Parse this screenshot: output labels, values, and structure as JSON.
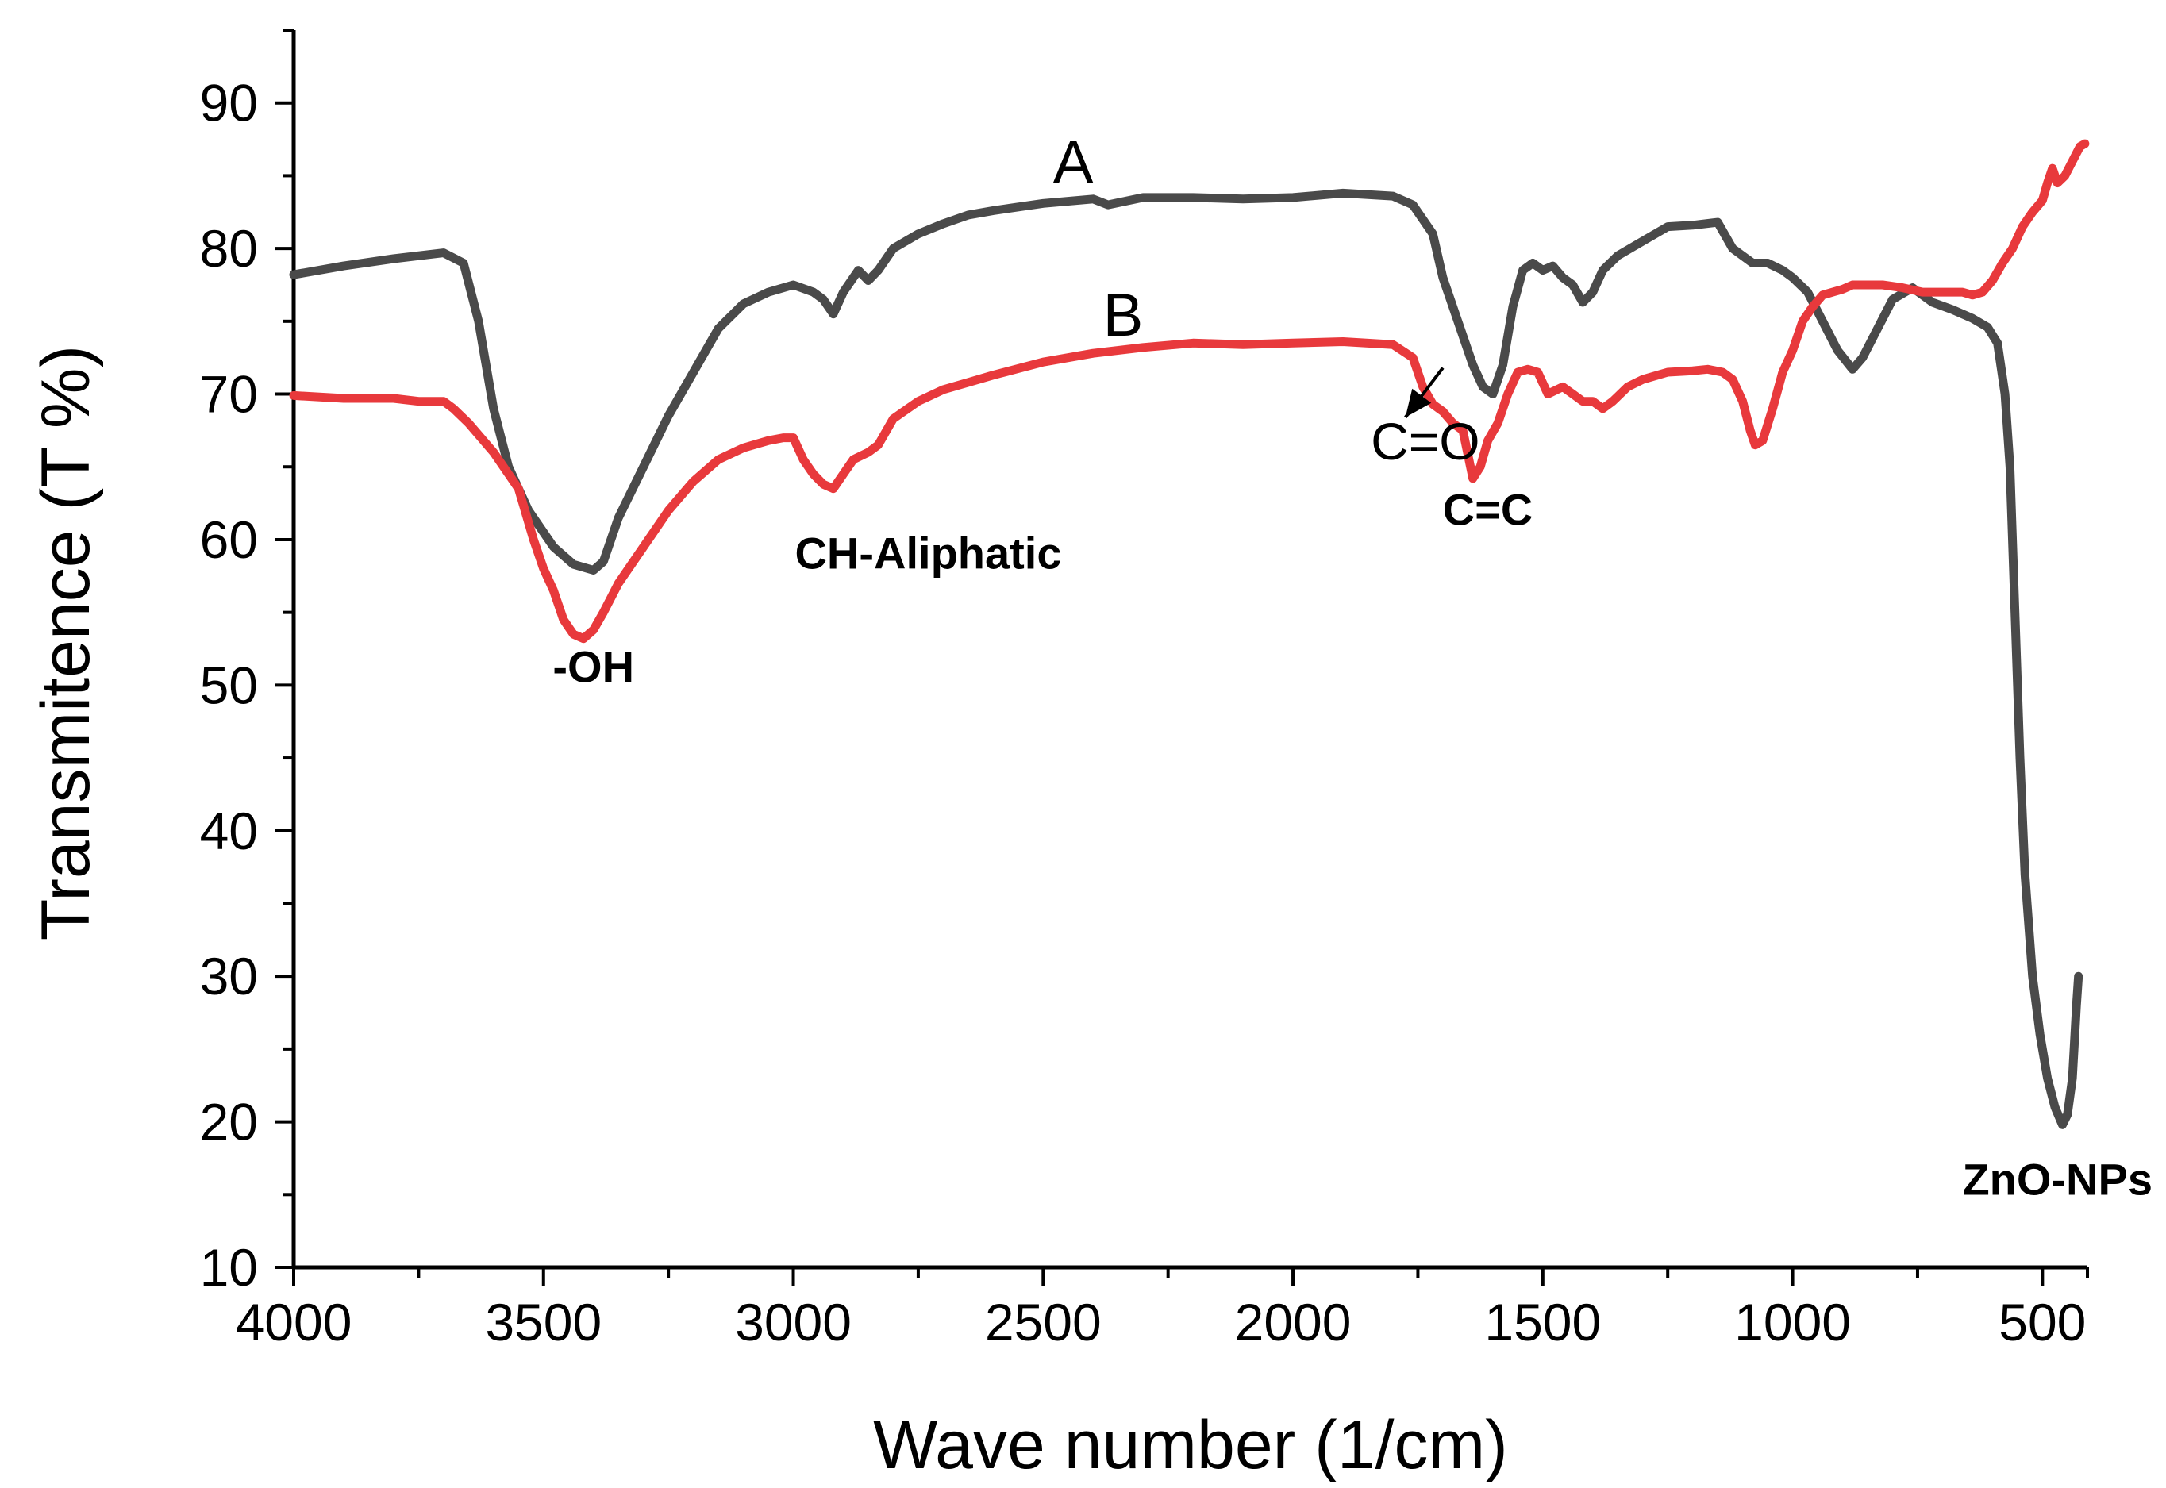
{
  "chart_data": {
    "type": "line",
    "xlabel": "Wave number (1/cm)",
    "ylabel": "Transmitence (T %)",
    "xlim": [
      4000,
      410
    ],
    "ylim": [
      10,
      95
    ],
    "x_ticks": [
      4000,
      3500,
      3000,
      2500,
      2000,
      1500,
      1000,
      500
    ],
    "y_ticks": [
      10,
      20,
      30,
      40,
      50,
      60,
      70,
      80,
      90
    ],
    "grid": false,
    "series": [
      {
        "name": "A",
        "color": "#4a4a4a",
        "points": [
          [
            4000,
            78.2
          ],
          [
            3900,
            78.8
          ],
          [
            3800,
            79.3
          ],
          [
            3700,
            79.7
          ],
          [
            3660,
            79
          ],
          [
            3630,
            75
          ],
          [
            3600,
            69
          ],
          [
            3570,
            65
          ],
          [
            3530,
            62
          ],
          [
            3480,
            59.5
          ],
          [
            3440,
            58.3
          ],
          [
            3400,
            57.9
          ],
          [
            3380,
            58.5
          ],
          [
            3350,
            61.5
          ],
          [
            3300,
            65
          ],
          [
            3250,
            68.5
          ],
          [
            3200,
            71.5
          ],
          [
            3150,
            74.5
          ],
          [
            3100,
            76.2
          ],
          [
            3050,
            77
          ],
          [
            3000,
            77.5
          ],
          [
            2960,
            77
          ],
          [
            2940,
            76.5
          ],
          [
            2920,
            75.5
          ],
          [
            2900,
            77
          ],
          [
            2870,
            78.5
          ],
          [
            2850,
            77.8
          ],
          [
            2830,
            78.5
          ],
          [
            2800,
            80
          ],
          [
            2750,
            81
          ],
          [
            2700,
            81.7
          ],
          [
            2650,
            82.3
          ],
          [
            2600,
            82.6
          ],
          [
            2500,
            83.1
          ],
          [
            2400,
            83.4
          ],
          [
            2370,
            83
          ],
          [
            2300,
            83.5
          ],
          [
            2200,
            83.5
          ],
          [
            2100,
            83.4
          ],
          [
            2000,
            83.5
          ],
          [
            1900,
            83.8
          ],
          [
            1800,
            83.6
          ],
          [
            1760,
            83
          ],
          [
            1720,
            81
          ],
          [
            1700,
            78
          ],
          [
            1680,
            76
          ],
          [
            1660,
            74
          ],
          [
            1640,
            72
          ],
          [
            1620,
            70.5
          ],
          [
            1600,
            70
          ],
          [
            1580,
            72
          ],
          [
            1560,
            76
          ],
          [
            1540,
            78.5
          ],
          [
            1520,
            79
          ],
          [
            1500,
            78.5
          ],
          [
            1480,
            78.8
          ],
          [
            1460,
            78
          ],
          [
            1440,
            77.5
          ],
          [
            1420,
            76.3
          ],
          [
            1400,
            77
          ],
          [
            1380,
            78.5
          ],
          [
            1350,
            79.5
          ],
          [
            1300,
            80.5
          ],
          [
            1250,
            81.5
          ],
          [
            1200,
            81.6
          ],
          [
            1150,
            81.8
          ],
          [
            1120,
            80
          ],
          [
            1100,
            79.5
          ],
          [
            1080,
            79
          ],
          [
            1050,
            79
          ],
          [
            1020,
            78.5
          ],
          [
            1000,
            78
          ],
          [
            970,
            77
          ],
          [
            940,
            75
          ],
          [
            910,
            73
          ],
          [
            880,
            71.7
          ],
          [
            860,
            72.5
          ],
          [
            830,
            74.5
          ],
          [
            800,
            76.5
          ],
          [
            760,
            77.3
          ],
          [
            720,
            76.3
          ],
          [
            680,
            75.8
          ],
          [
            640,
            75.2
          ],
          [
            610,
            74.6
          ],
          [
            590,
            73.5
          ],
          [
            575,
            70
          ],
          [
            565,
            65
          ],
          [
            555,
            55
          ],
          [
            545,
            45
          ],
          [
            535,
            37
          ],
          [
            520,
            30
          ],
          [
            505,
            26
          ],
          [
            490,
            23
          ],
          [
            475,
            21
          ],
          [
            460,
            19.8
          ],
          [
            450,
            20.5
          ],
          [
            440,
            23
          ],
          [
            432,
            28
          ],
          [
            428,
            30
          ]
        ]
      },
      {
        "name": "B",
        "color": "#e8393c",
        "points": [
          [
            4000,
            69.9
          ],
          [
            3900,
            69.7
          ],
          [
            3800,
            69.7
          ],
          [
            3750,
            69.5
          ],
          [
            3700,
            69.5
          ],
          [
            3680,
            69
          ],
          [
            3650,
            68
          ],
          [
            3600,
            66
          ],
          [
            3550,
            63.5
          ],
          [
            3520,
            60
          ],
          [
            3500,
            58
          ],
          [
            3480,
            56.5
          ],
          [
            3460,
            54.5
          ],
          [
            3440,
            53.5
          ],
          [
            3420,
            53.2
          ],
          [
            3400,
            53.8
          ],
          [
            3380,
            55
          ],
          [
            3350,
            57
          ],
          [
            3300,
            59.5
          ],
          [
            3250,
            62
          ],
          [
            3200,
            64
          ],
          [
            3150,
            65.5
          ],
          [
            3100,
            66.3
          ],
          [
            3050,
            66.8
          ],
          [
            3020,
            67
          ],
          [
            3000,
            67
          ],
          [
            2980,
            65.5
          ],
          [
            2960,
            64.5
          ],
          [
            2940,
            63.8
          ],
          [
            2920,
            63.5
          ],
          [
            2900,
            64.5
          ],
          [
            2880,
            65.5
          ],
          [
            2850,
            66
          ],
          [
            2830,
            66.5
          ],
          [
            2800,
            68.3
          ],
          [
            2750,
            69.5
          ],
          [
            2700,
            70.3
          ],
          [
            2650,
            70.8
          ],
          [
            2600,
            71.3
          ],
          [
            2500,
            72.2
          ],
          [
            2400,
            72.8
          ],
          [
            2300,
            73.2
          ],
          [
            2200,
            73.5
          ],
          [
            2100,
            73.4
          ],
          [
            2000,
            73.5
          ],
          [
            1900,
            73.6
          ],
          [
            1800,
            73.4
          ],
          [
            1760,
            72.5
          ],
          [
            1740,
            70.5
          ],
          [
            1720,
            69.3
          ],
          [
            1700,
            68.8
          ],
          [
            1680,
            68
          ],
          [
            1660,
            67.5
          ],
          [
            1640,
            64.2
          ],
          [
            1625,
            65
          ],
          [
            1610,
            66.8
          ],
          [
            1590,
            68
          ],
          [
            1570,
            70
          ],
          [
            1550,
            71.5
          ],
          [
            1530,
            71.7
          ],
          [
            1510,
            71.5
          ],
          [
            1490,
            70
          ],
          [
            1460,
            70.5
          ],
          [
            1440,
            70
          ],
          [
            1420,
            69.5
          ],
          [
            1400,
            69.5
          ],
          [
            1380,
            69
          ],
          [
            1360,
            69.5
          ],
          [
            1330,
            70.5
          ],
          [
            1300,
            71
          ],
          [
            1250,
            71.5
          ],
          [
            1200,
            71.6
          ],
          [
            1170,
            71.7
          ],
          [
            1140,
            71.5
          ],
          [
            1120,
            71
          ],
          [
            1100,
            69.5
          ],
          [
            1085,
            67.5
          ],
          [
            1075,
            66.5
          ],
          [
            1060,
            66.8
          ],
          [
            1040,
            69
          ],
          [
            1020,
            71.5
          ],
          [
            1000,
            73
          ],
          [
            980,
            75
          ],
          [
            960,
            76
          ],
          [
            940,
            76.8
          ],
          [
            920,
            77
          ],
          [
            900,
            77.2
          ],
          [
            880,
            77.5
          ],
          [
            860,
            77.5
          ],
          [
            820,
            77.5
          ],
          [
            780,
            77.3
          ],
          [
            740,
            77
          ],
          [
            700,
            77
          ],
          [
            660,
            77
          ],
          [
            640,
            76.8
          ],
          [
            620,
            77
          ],
          [
            600,
            77.8
          ],
          [
            580,
            79
          ],
          [
            560,
            80
          ],
          [
            540,
            81.5
          ],
          [
            520,
            82.5
          ],
          [
            500,
            83.3
          ],
          [
            490,
            84.5
          ],
          [
            480,
            85.5
          ],
          [
            470,
            84.5
          ],
          [
            455,
            85
          ],
          [
            440,
            86
          ],
          [
            425,
            87
          ],
          [
            415,
            87.2
          ]
        ]
      }
    ],
    "annotations": [
      {
        "text": "-OH",
        "x": 3400,
        "y": 50.2
      },
      {
        "text": "CH-Aliphatic",
        "x": 2730,
        "y": 58
      },
      {
        "text": "C=O",
        "x": 1735,
        "y": 65.5
      },
      {
        "text": "C=C",
        "x": 1610,
        "y": 61
      },
      {
        "text": "ZnO-NPs",
        "x": 470,
        "y": 15
      },
      {
        "text": "A",
        "x": 2440,
        "y": 84.5
      },
      {
        "text": "B",
        "x": 2340,
        "y": 74
      }
    ]
  }
}
